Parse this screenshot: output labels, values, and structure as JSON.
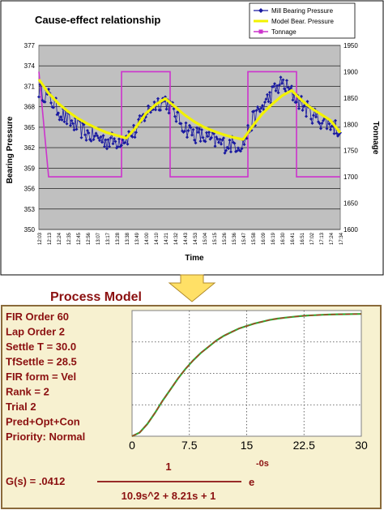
{
  "colors": {
    "plot_area": "#c0c0c0",
    "mill_series": "#1a1aa0",
    "model_series": "#f2f200",
    "tonnage_series": "#cc33cc",
    "model_panel_bg": "#f7f1d0",
    "model_panel_border": "#8a6a3a",
    "model_text": "#8b1010",
    "arrow_fill": "#ffe066",
    "chart2_line_green": "#33aa33",
    "chart2_line_red": "#cc2222",
    "chart2_bg": "#ffffff"
  },
  "icons": {
    "transition": "down-arrow-icon"
  },
  "process_model": {
    "heading": "Process Model",
    "params": [
      "FIR Order 60",
      "Lap Order 2",
      "Settle T = 30.0",
      "TfSettle = 28.5",
      "FIR form = Vel",
      "Rank = 2",
      "Trial 2",
      "Pred+Opt+Con",
      "Priority: Normal"
    ],
    "formula": {
      "lhs": "G(s) = .0412",
      "numerator": "1",
      "denominator": "10.9s^2 + 8.21s + 1",
      "exp_base": "e",
      "exp_power": "-0s"
    }
  },
  "chart_data": [
    {
      "type": "line",
      "title": "Cause-effect relationship",
      "xlabel": "Time",
      "ylabel": "Bearing Pressure",
      "y2label": "Tonnage",
      "ylim": [
        350,
        377
      ],
      "y2lim": [
        1600,
        1950
      ],
      "y_ticks": [
        "377",
        "374",
        "371",
        "368",
        "365",
        "362",
        "359",
        "356",
        "353",
        "350"
      ],
      "y2_ticks": [
        "1950",
        "1900",
        "1850",
        "1800",
        "1750",
        "1700",
        "1650",
        "1600"
      ],
      "x_ticks": [
        "12:03",
        "12:13",
        "12:24",
        "12:35",
        "12:45",
        "12:56",
        "13:07",
        "13:17",
        "13:28",
        "13:38",
        "13:49",
        "14:00",
        "14:10",
        "14:21",
        "14:32",
        "14:43",
        "14:53",
        "15:04",
        "15:15",
        "15:26",
        "15:36",
        "15:47",
        "15:58",
        "16:09",
        "16:19",
        "16:30",
        "16:41",
        "16:51",
        "17:02",
        "17:13",
        "17:24",
        "17:34"
      ],
      "grid": true,
      "legend_position": "top-right",
      "legend": [
        "Mill Bearing Pressure",
        "Model Bear. Pressure",
        "Tonnage"
      ],
      "series": [
        {
          "name": "Mill Bearing Pressure",
          "axis": "left",
          "x": [
            0,
            1,
            2,
            3,
            4,
            5,
            6,
            7,
            8,
            9,
            10,
            11,
            12,
            13,
            14,
            15,
            16,
            17,
            18,
            19,
            20,
            21,
            22,
            23,
            24,
            25,
            26,
            27,
            28,
            29,
            30,
            31
          ],
          "y": [
            370.5,
            369.5,
            367.5,
            366.0,
            365.0,
            364.0,
            363.5,
            363.0,
            363.0,
            363.5,
            364.5,
            367.0,
            368.5,
            369.0,
            367.0,
            365.0,
            364.0,
            363.5,
            363.0,
            362.5,
            362.5,
            362.5,
            366.0,
            368.0,
            370.0,
            371.5,
            370.0,
            368.5,
            367.0,
            366.0,
            365.5,
            364.5
          ]
        },
        {
          "name": "Model Bear. Pressure",
          "axis": "left",
          "x": [
            0,
            1,
            2,
            3,
            4,
            5,
            6,
            7,
            8,
            9,
            10,
            11,
            12,
            13,
            14,
            15,
            16,
            17,
            18,
            19,
            20,
            21,
            22,
            23,
            24,
            25,
            26,
            27,
            28,
            29,
            30,
            31
          ],
          "y": [
            372.0,
            370.0,
            368.5,
            367.3,
            366.3,
            365.5,
            364.8,
            364.2,
            363.8,
            363.4,
            365.0,
            367.0,
            368.3,
            369.2,
            368.0,
            366.8,
            365.8,
            365.0,
            364.4,
            363.9,
            363.5,
            363.2,
            365.2,
            367.0,
            368.4,
            369.6,
            370.4,
            369.0,
            367.8,
            366.9,
            366.0,
            364.2
          ]
        },
        {
          "name": "Tonnage",
          "axis": "right",
          "x": [
            0,
            1,
            8.5,
            8.5,
            13.5,
            13.5,
            21.5,
            21.5,
            26.5,
            26.5,
            31
          ],
          "y": [
            1900,
            1700,
            1700,
            1900,
            1900,
            1700,
            1700,
            1900,
            1900,
            1700,
            1700
          ]
        }
      ]
    },
    {
      "type": "line",
      "title": "",
      "xlabel": "",
      "ylabel": "",
      "xlim": [
        0,
        30
      ],
      "x_ticks": [
        "0",
        "7.5",
        "15",
        "22.5",
        "30"
      ],
      "grid": true,
      "series": [
        {
          "x": [
            0,
            1,
            2,
            3,
            4,
            5,
            6,
            7,
            8,
            9,
            10,
            11,
            12,
            13,
            14,
            15,
            16,
            17,
            18,
            19,
            20,
            21,
            22,
            23,
            24,
            25,
            26,
            27,
            28,
            29,
            30
          ],
          "y": [
            0,
            0.03,
            0.1,
            0.19,
            0.29,
            0.38,
            0.47,
            0.55,
            0.62,
            0.68,
            0.73,
            0.78,
            0.82,
            0.85,
            0.88,
            0.9,
            0.92,
            0.935,
            0.95,
            0.96,
            0.968,
            0.975,
            0.981,
            0.986,
            0.989,
            0.992,
            0.994,
            0.996,
            0.997,
            0.998,
            0.999
          ]
        }
      ]
    }
  ]
}
